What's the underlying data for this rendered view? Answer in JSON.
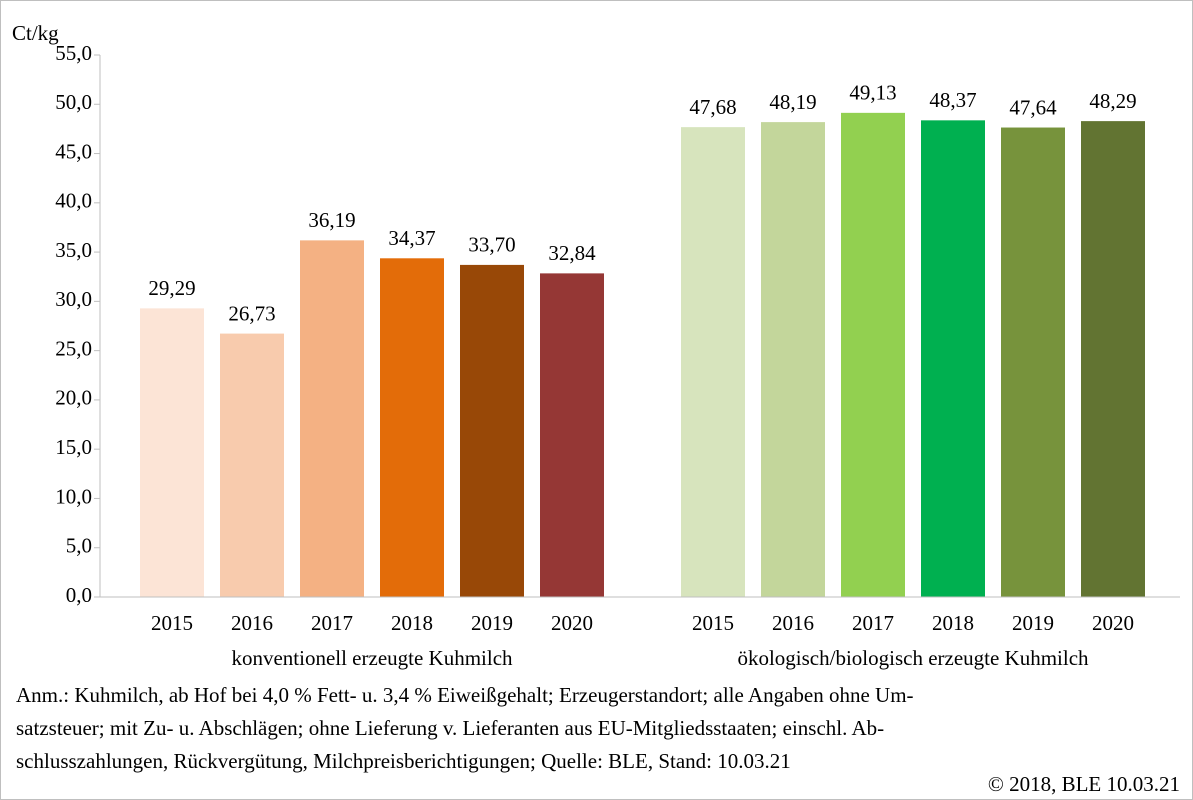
{
  "chart_data": {
    "type": "bar",
    "y_axis_label": "Ct/kg",
    "ylim": [
      0,
      55
    ],
    "yticks": [
      {
        "value": 0,
        "label": "0,0"
      },
      {
        "value": 5,
        "label": "5,0"
      },
      {
        "value": 10,
        "label": "10,0"
      },
      {
        "value": 15,
        "label": "15,0"
      },
      {
        "value": 20,
        "label": "20,0"
      },
      {
        "value": 25,
        "label": "25,0"
      },
      {
        "value": 30,
        "label": "30,0"
      },
      {
        "value": 35,
        "label": "35,0"
      },
      {
        "value": 40,
        "label": "40,0"
      },
      {
        "value": 45,
        "label": "45,0"
      },
      {
        "value": 50,
        "label": "50,0"
      },
      {
        "value": 55,
        "label": "55,0"
      }
    ],
    "grid": false,
    "groups": [
      {
        "name": "konventionell erzeugte Kuhmilch",
        "categories": [
          "2015",
          "2016",
          "2017",
          "2018",
          "2019",
          "2020"
        ],
        "values": [
          29.29,
          26.73,
          36.19,
          34.37,
          33.7,
          32.84
        ],
        "value_labels": [
          "29,29",
          "26,73",
          "36,19",
          "34,37",
          "33,70",
          "32,84"
        ],
        "colors": [
          "#fce4d6",
          "#f8cbad",
          "#f4b183",
          "#e36c09",
          "#984807",
          "#953735"
        ]
      },
      {
        "name": "ökologisch/biologisch erzeugte Kuhmilch",
        "categories": [
          "2015",
          "2016",
          "2017",
          "2018",
          "2019",
          "2020"
        ],
        "values": [
          47.68,
          48.19,
          49.13,
          48.37,
          47.64,
          48.29
        ],
        "value_labels": [
          "47,68",
          "48,19",
          "49,13",
          "48,37",
          "47,64",
          "48,29"
        ],
        "colors": [
          "#d7e4bd",
          "#c3d69b",
          "#92d050",
          "#00b050",
          "#77933c",
          "#627432"
        ]
      }
    ]
  },
  "note": [
    "Anm.: Kuhmilch, ab Hof bei 4,0 % Fett- u. 3,4 % Eiweißgehalt; Erzeugerstandort; alle Angaben ohne Um-",
    "satzsteuer; mit Zu- u. Abschlägen; ohne Lieferung v. Lieferanten aus EU-Mitgliedsstaaten; einschl. Ab-",
    "schlusszahlungen, Rückvergütung, Milchpreisberichtigungen; Quelle: BLE, Stand: 10.03.21"
  ],
  "copyright": "© 2018, BLE 10.03.21"
}
